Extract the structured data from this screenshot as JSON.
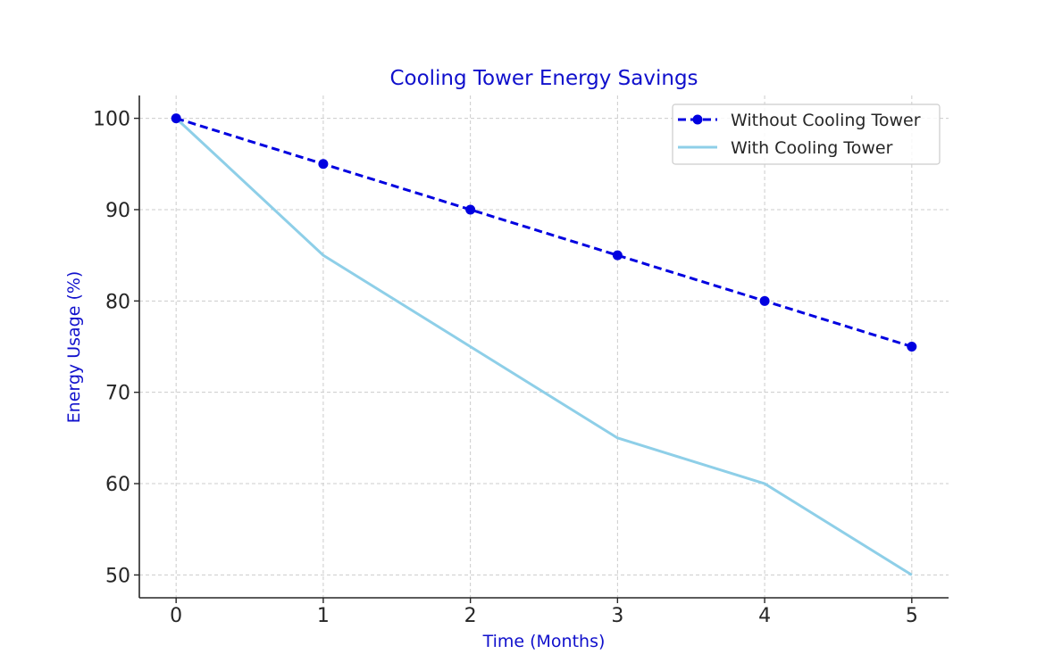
{
  "chart_data": {
    "type": "line",
    "title": "Cooling Tower Energy Savings",
    "xlabel": "Time (Months)",
    "ylabel": "Energy Usage (%)",
    "x": [
      0,
      1,
      2,
      3,
      4,
      5
    ],
    "xticks": [
      "0",
      "1",
      "2",
      "3",
      "4",
      "5"
    ],
    "yticks": [
      "50",
      "60",
      "70",
      "80",
      "90",
      "100"
    ],
    "xlim": [
      -0.25,
      5.25
    ],
    "ylim": [
      47.5,
      102.5
    ],
    "grid": true,
    "legend_position": "top-right",
    "series": [
      {
        "name": "Without Cooling Tower",
        "values": [
          100,
          95,
          90,
          85,
          80,
          75
        ],
        "color": "#0000e0",
        "line_style": "dashed",
        "marker": "circle"
      },
      {
        "name": "With Cooling Tower",
        "values": [
          100,
          85,
          75,
          65,
          60,
          50
        ],
        "color": "#8ecfe8",
        "line_style": "solid",
        "marker": "none"
      }
    ],
    "colors": {
      "title": "#1010cc",
      "axis_label": "#1010cc",
      "grid": "#cccccc",
      "axis": "#262626"
    }
  }
}
